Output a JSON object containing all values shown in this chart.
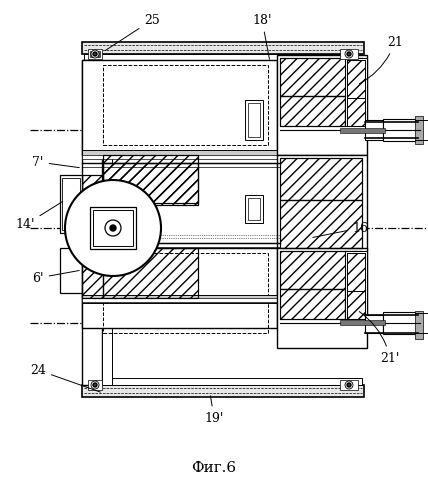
{
  "title": "Фиг.6",
  "bg_color": "#ffffff",
  "fig_width": 4.28,
  "fig_height": 5.0,
  "dpi": 100
}
